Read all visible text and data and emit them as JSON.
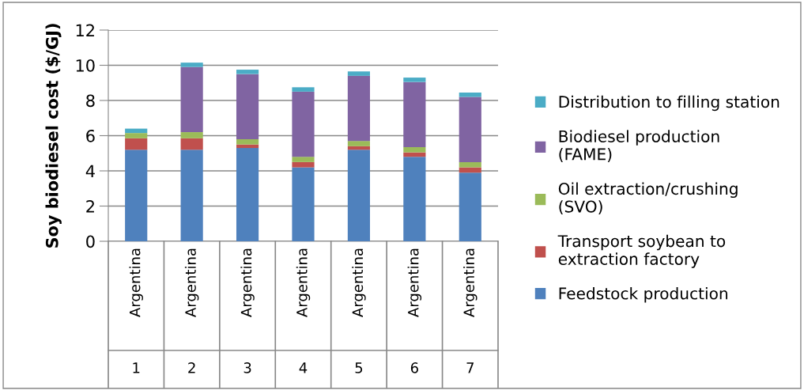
{
  "chart_data": {
    "type": "bar",
    "stacked": true,
    "ylabel": "Soy biodiesel cost ($/GJ)",
    "categories": [
      "Argentina\n1",
      "Argentina\n2",
      "Argentina\n3",
      "Argentina\n4",
      "Argentina\n5",
      "Argentina\n6",
      "Argentina\n7"
    ],
    "series": [
      {
        "name": "Feedstock production",
        "color": "#4f81bd",
        "values": [
          5.2,
          5.2,
          5.3,
          4.2,
          5.2,
          4.8,
          3.9
        ]
      },
      {
        "name": "Transport soybean to\nextraction factory",
        "color": "#c0504d",
        "values": [
          0.65,
          0.65,
          0.2,
          0.3,
          0.2,
          0.25,
          0.3
        ]
      },
      {
        "name": "Oil extraction/crushing\n(SVO)",
        "color": "#9bbb59",
        "values": [
          0.3,
          0.35,
          0.3,
          0.3,
          0.3,
          0.3,
          0.3
        ]
      },
      {
        "name": "Biodiesel production\n(FAME)",
        "color": "#8064a2",
        "values": [
          null,
          3.7,
          3.7,
          3.7,
          3.7,
          3.7,
          3.7
        ]
      },
      {
        "name": "Distribution to filling station",
        "color": "#4bacc6",
        "values": [
          0.25,
          0.25,
          0.25,
          0.25,
          0.25,
          0.25,
          0.25
        ]
      }
    ],
    "ylim": [
      0,
      12
    ],
    "yticks": [
      0,
      2,
      4,
      6,
      8,
      10,
      12
    ],
    "grid": "y",
    "legend": "right"
  }
}
